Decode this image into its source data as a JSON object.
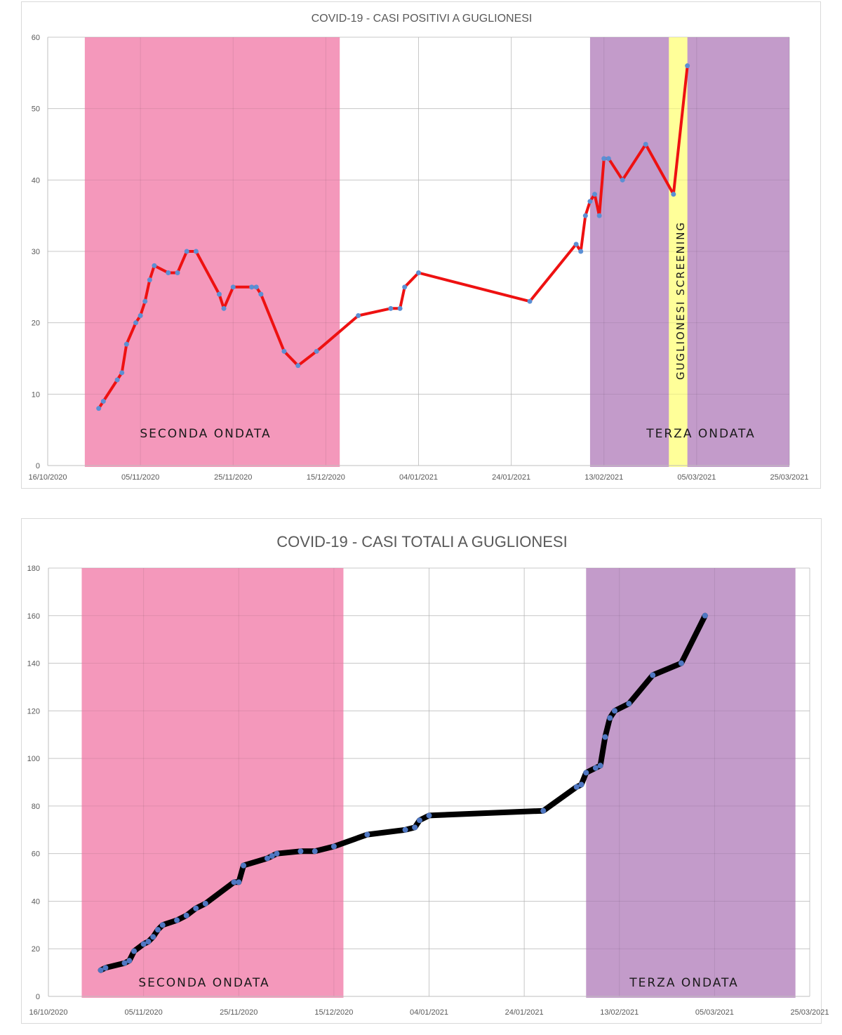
{
  "chart_data": [
    {
      "type": "line",
      "title": "COVID-19 - CASI POSITIVI A GUGLIONESI",
      "ylim": [
        0,
        60
      ],
      "yticks": [
        0,
        10,
        20,
        30,
        40,
        50,
        60
      ],
      "xlim": [
        "2020-10-16",
        "2021-03-25"
      ],
      "xtick_labels": [
        "16/10/2020",
        "05/11/2020",
        "25/11/2020",
        "15/12/2020",
        "04/01/2021",
        "24/01/2021",
        "13/02/2021",
        "05/03/2021",
        "25/03/2021"
      ],
      "grid": true,
      "line_color": "#ee1111",
      "marker_color": "#5b8fd4",
      "bands": [
        {
          "label": "SECONDA ONDATA",
          "start": "2020-10-24",
          "end": "2020-12-18",
          "color": "#f498bb"
        },
        {
          "label": "TERZA ONDATA",
          "start": "2021-02-10",
          "end": "2021-03-25",
          "color": "#c39bca"
        },
        {
          "label": "GUGLIONESI SCREENING",
          "start": "2021-02-27",
          "end": "2021-03-03",
          "color": "#ffff99"
        }
      ],
      "series": [
        {
          "x": [
            "2020-10-27",
            "2020-10-28",
            "2020-10-31",
            "2020-11-01",
            "2020-11-02",
            "2020-11-04",
            "2020-11-05",
            "2020-11-06",
            "2020-11-07",
            "2020-11-08",
            "2020-11-11",
            "2020-11-13",
            "2020-11-15",
            "2020-11-17",
            "2020-11-22",
            "2020-11-23",
            "2020-11-25",
            "2020-11-29",
            "2020-11-30",
            "2020-12-01",
            "2020-12-06",
            "2020-12-09",
            "2020-12-13",
            "2020-12-22",
            "2020-12-29",
            "2020-12-31",
            "2021-01-01",
            "2021-01-04",
            "2021-01-28",
            "2021-02-07",
            "2021-02-08",
            "2021-02-09",
            "2021-02-10",
            "2021-02-11",
            "2021-02-12",
            "2021-02-13",
            "2021-02-14",
            "2021-02-17",
            "2021-02-22",
            "2021-02-28",
            "2021-03-03"
          ],
          "values": [
            8,
            9,
            12,
            13,
            17,
            20,
            21,
            23,
            26,
            28,
            27,
            27,
            30,
            30,
            24,
            22,
            25,
            25,
            25,
            24,
            16,
            14,
            16,
            21,
            22,
            22,
            25,
            27,
            23,
            31,
            30,
            35,
            37,
            38,
            35,
            43,
            43,
            40,
            45,
            38,
            56
          ]
        }
      ]
    },
    {
      "type": "line",
      "title": "COVID-19 - CASI TOTALI A GUGLIONESI",
      "ylim": [
        0,
        180
      ],
      "yticks": [
        0,
        20,
        40,
        60,
        80,
        100,
        120,
        140,
        160,
        180
      ],
      "xlim": [
        "2020-10-16",
        "2021-03-25"
      ],
      "xtick_labels": [
        "16/10/2020",
        "05/11/2020",
        "25/11/2020",
        "15/12/2020",
        "04/01/2021",
        "24/01/2021",
        "13/02/2021",
        "05/03/2021",
        "25/03/2021"
      ],
      "grid": true,
      "line_color": "#000000",
      "marker_color": "#4f77c2",
      "bands": [
        {
          "label": "SECONDA ONDATA",
          "start": "2020-10-23",
          "end": "2020-12-17",
          "color": "#f498bb"
        },
        {
          "label": "TERZA ONDATA",
          "start": "2021-02-06",
          "end": "2021-03-22",
          "color": "#c39bca"
        }
      ],
      "series": [
        {
          "x": [
            "2020-10-27",
            "2020-10-28",
            "2020-11-01",
            "2020-11-02",
            "2020-11-03",
            "2020-11-05",
            "2020-11-06",
            "2020-11-07",
            "2020-11-08",
            "2020-11-09",
            "2020-11-12",
            "2020-11-14",
            "2020-11-16",
            "2020-11-18",
            "2020-11-24",
            "2020-11-25",
            "2020-11-26",
            "2020-12-01",
            "2020-12-02",
            "2020-12-03",
            "2020-12-08",
            "2020-12-11",
            "2020-12-15",
            "2020-12-22",
            "2020-12-30",
            "2021-01-01",
            "2021-01-02",
            "2021-01-04",
            "2021-01-28",
            "2021-02-04",
            "2021-02-05",
            "2021-02-06",
            "2021-02-08",
            "2021-02-09",
            "2021-02-10",
            "2021-02-11",
            "2021-02-12",
            "2021-02-15",
            "2021-02-20",
            "2021-02-26",
            "2021-03-03"
          ],
          "values": [
            11,
            12,
            14,
            15,
            19,
            22,
            23,
            25,
            28,
            30,
            32,
            34,
            37,
            39,
            48,
            48,
            55,
            58,
            59,
            60,
            61,
            61,
            63,
            68,
            70,
            71,
            74,
            76,
            78,
            88,
            89,
            94,
            96,
            97,
            109,
            117,
            120,
            123,
            135,
            140,
            160
          ]
        }
      ]
    }
  ]
}
